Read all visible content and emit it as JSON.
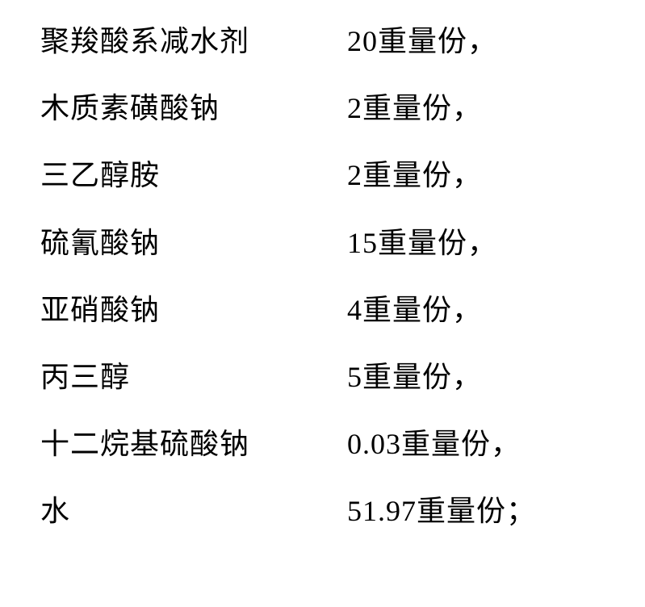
{
  "composition": {
    "font_size": 36,
    "text_color": "#000000",
    "background_color": "#ffffff",
    "font_family": "SimSun",
    "row_spacing": 40,
    "name_column_width": 380,
    "items": [
      {
        "name": "聚羧酸系减水剂",
        "amount": "20重量份，"
      },
      {
        "name": "木质素磺酸钠",
        "amount": "2重量份，"
      },
      {
        "name": "三乙醇胺",
        "amount": "2重量份，"
      },
      {
        "name": "硫氰酸钠",
        "amount": "15重量份，"
      },
      {
        "name": "亚硝酸钠",
        "amount": "4重量份，"
      },
      {
        "name": "丙三醇",
        "amount": "5重量份，"
      },
      {
        "name": "十二烷基硫酸钠",
        "amount": "0.03重量份，"
      },
      {
        "name": "水",
        "amount": "51.97重量份；"
      }
    ]
  }
}
